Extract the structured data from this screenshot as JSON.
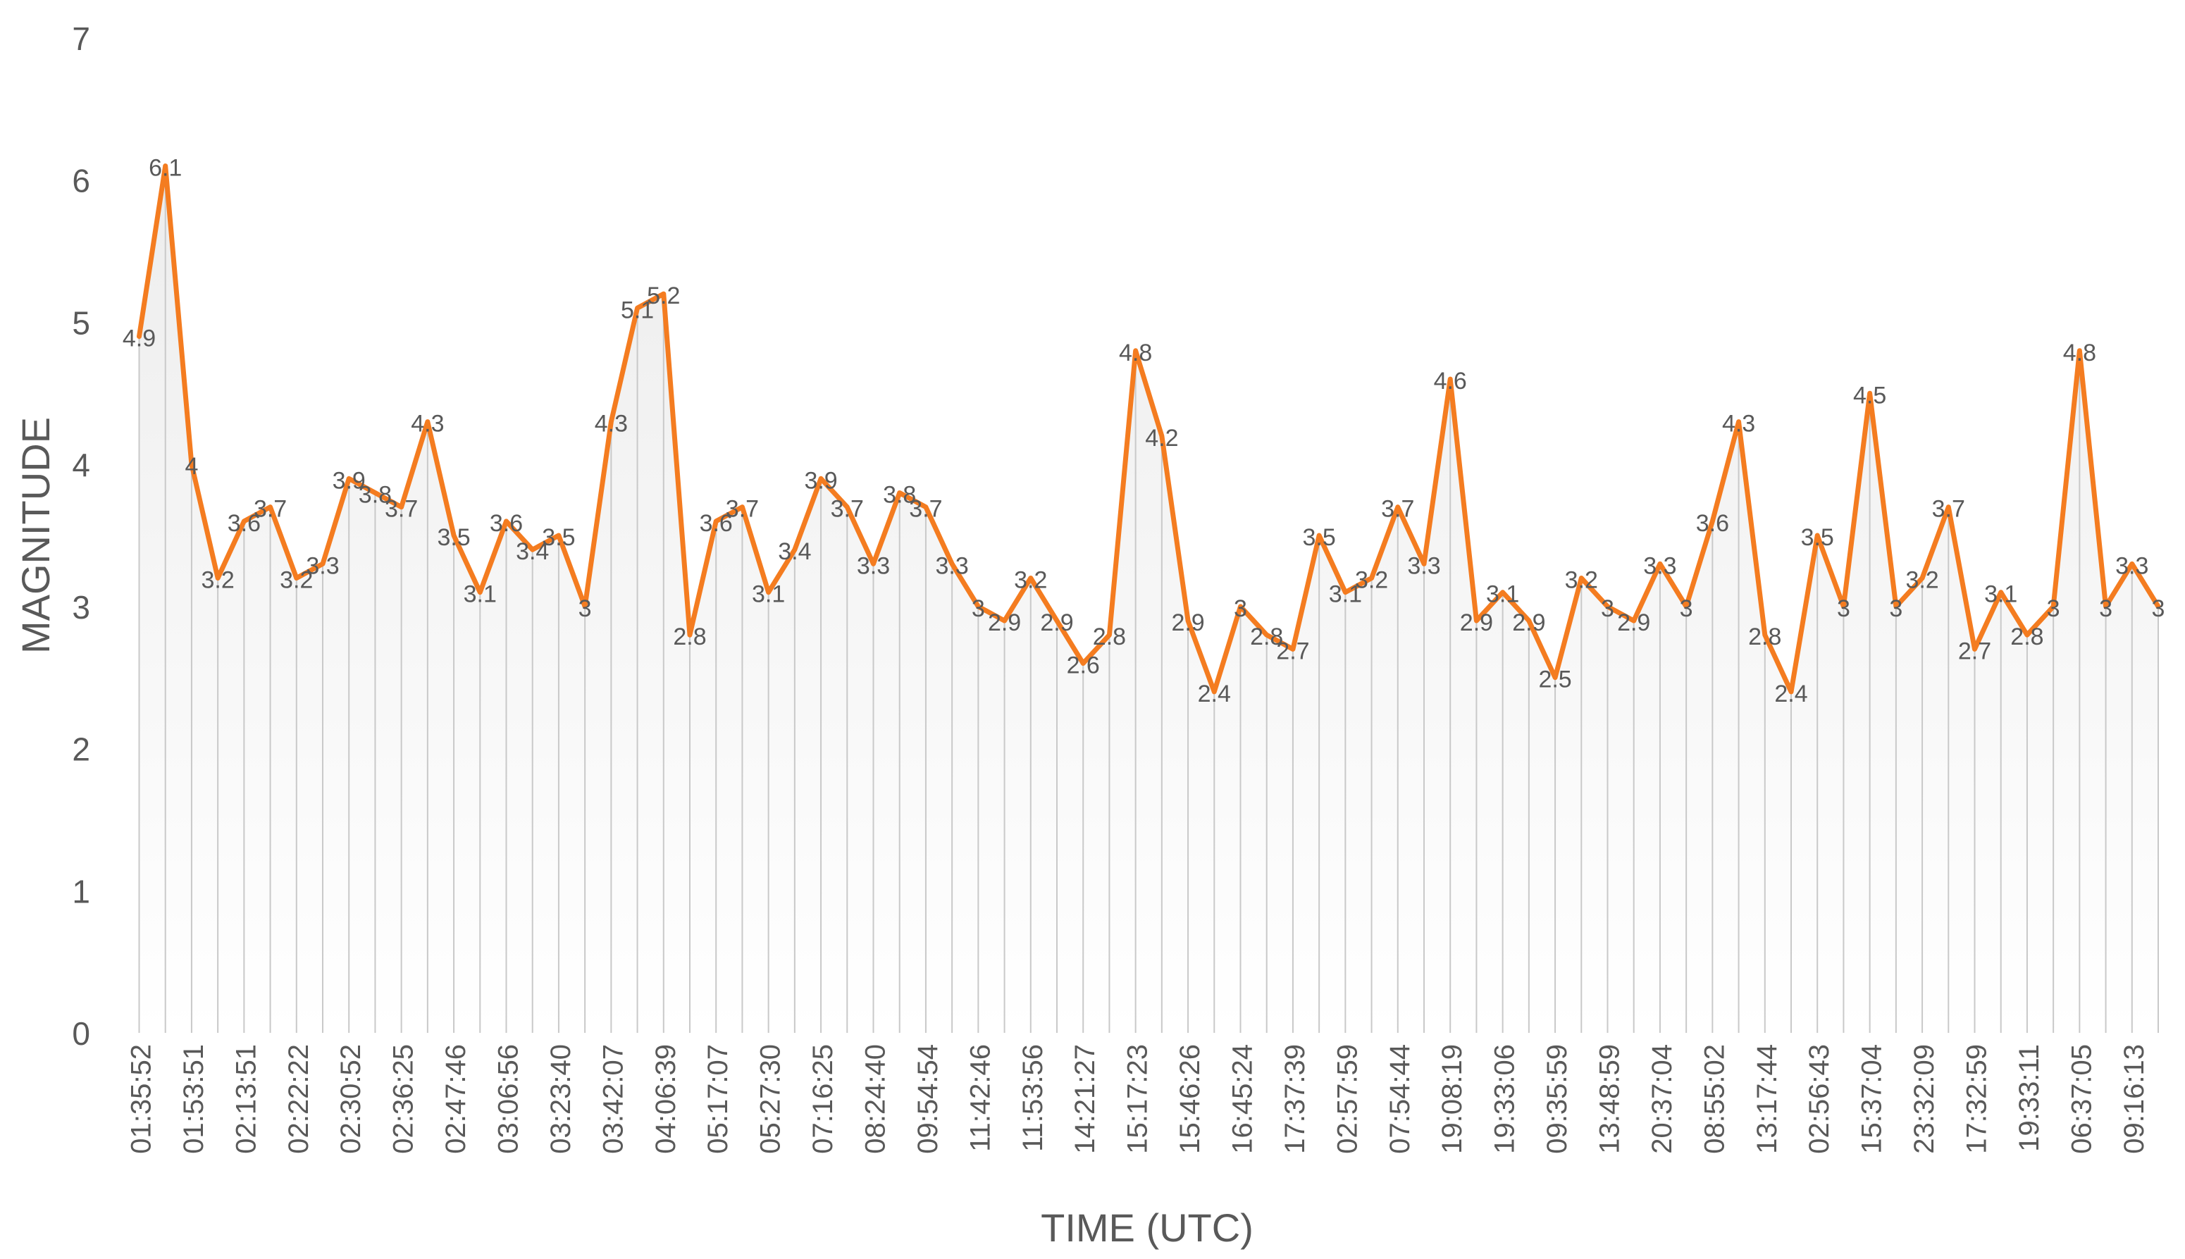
{
  "colors": {
    "line": "#F47C20",
    "area_top": "#EDEDED",
    "area_bottom": "#FFFFFF",
    "drop_line": "#C9C9C9",
    "text": "#595959",
    "data_label": "#595959"
  },
  "chart_data": {
    "type": "line",
    "title": "",
    "xlabel": "TIME (UTC)",
    "ylabel": "MAGNITUDE",
    "ylim": [
      0,
      7
    ],
    "yticks": [
      "0",
      "1",
      "2",
      "3",
      "4",
      "5",
      "6",
      "7"
    ],
    "grid": false,
    "legend": "none",
    "x": [
      "01:35:52",
      "",
      "01:53:51",
      "",
      "02:13:51",
      "",
      "02:22:22",
      "",
      "02:30:52",
      "",
      "02:36:25",
      "",
      "02:47:46",
      "",
      "03:06:56",
      "",
      "03:23:40",
      "",
      "03:42:07",
      "",
      "04:06:39",
      "",
      "05:17:07",
      "",
      "05:27:30",
      "",
      "07:16:25",
      "",
      "08:24:40",
      "",
      "09:54:54",
      "",
      "11:42:46",
      "",
      "11:53:56",
      "",
      "14:21:27",
      "",
      "15:17:23",
      "",
      "15:46:26",
      "",
      "16:45:24",
      "",
      "17:37:39",
      "",
      "02:57:59",
      "",
      "07:54:44",
      "",
      "19:08:19",
      "",
      "19:33:06",
      "",
      "09:35:59",
      "",
      "13:48:59",
      "",
      "20:37:04",
      "",
      "08:55:02",
      "",
      "13:17:44",
      "",
      "02:56:43",
      "",
      "15:37:04",
      "",
      "23:32:09",
      "",
      "17:32:59",
      "",
      "19:33:11",
      "",
      "06:37:05",
      "",
      "09:16:13",
      ""
    ],
    "series": [
      {
        "values": [
          4.9,
          6.1,
          4,
          3.2,
          3.6,
          3.7,
          3.2,
          3.3,
          3.9,
          3.8,
          3.7,
          4.3,
          3.5,
          3.1,
          3.6,
          3.4,
          3.5,
          3,
          4.3,
          5.1,
          5.2,
          2.8,
          3.6,
          3.7,
          3.1,
          3.4,
          3.9,
          3.7,
          3.3,
          3.8,
          3.7,
          3.3,
          3,
          2.9,
          3.2,
          2.9,
          2.6,
          2.8,
          4.8,
          4.2,
          2.9,
          2.4,
          3,
          2.8,
          2.7,
          3.5,
          3.1,
          3.2,
          3.7,
          3.3,
          4.6,
          2.9,
          3.1,
          2.9,
          2.5,
          3.2,
          3,
          2.9,
          3.3,
          3,
          3.6,
          4.3,
          2.8,
          2.4,
          3.5,
          3,
          4.5,
          3,
          3.2,
          3.7,
          2.7,
          3.1,
          2.8,
          3,
          4.8,
          3,
          3.3,
          3
        ],
        "labels": [
          "4.9",
          "6.1",
          "4",
          "3.2",
          "3.6",
          "3.7",
          "3.2",
          "3.3",
          "3.9",
          "3.8",
          "3.7",
          "4.3",
          "3.5",
          "3.1",
          "3.6",
          "3.4",
          "3.5",
          "3",
          "4.3",
          "5.1",
          "5.2",
          "2.8",
          "3.6",
          "3.7",
          "3.1",
          "3.4",
          "3.9",
          "3.7",
          "3.3",
          "3.8",
          "3.7",
          "3.3",
          "3",
          "2.9",
          "3.2",
          "2.9",
          "2.6",
          "2.8",
          "4.8",
          "4.2",
          "2.9",
          "2.4",
          "3",
          "2.8",
          "2.7",
          "3.5",
          "3.1",
          "3.2",
          "3.7",
          "3.3",
          "4.6",
          "2.9",
          "3.1",
          "2.9",
          "2.5",
          "3.2",
          "3",
          "2.9",
          "3.3",
          "3",
          "3.6",
          "4.3",
          "2.8",
          "2.4",
          "3.5",
          "3",
          "4.5",
          "3",
          "3.2",
          "3.7",
          "2.7",
          "3.1",
          "2.8",
          "3",
          "4.8",
          "3",
          "3.3",
          "3"
        ]
      }
    ]
  }
}
